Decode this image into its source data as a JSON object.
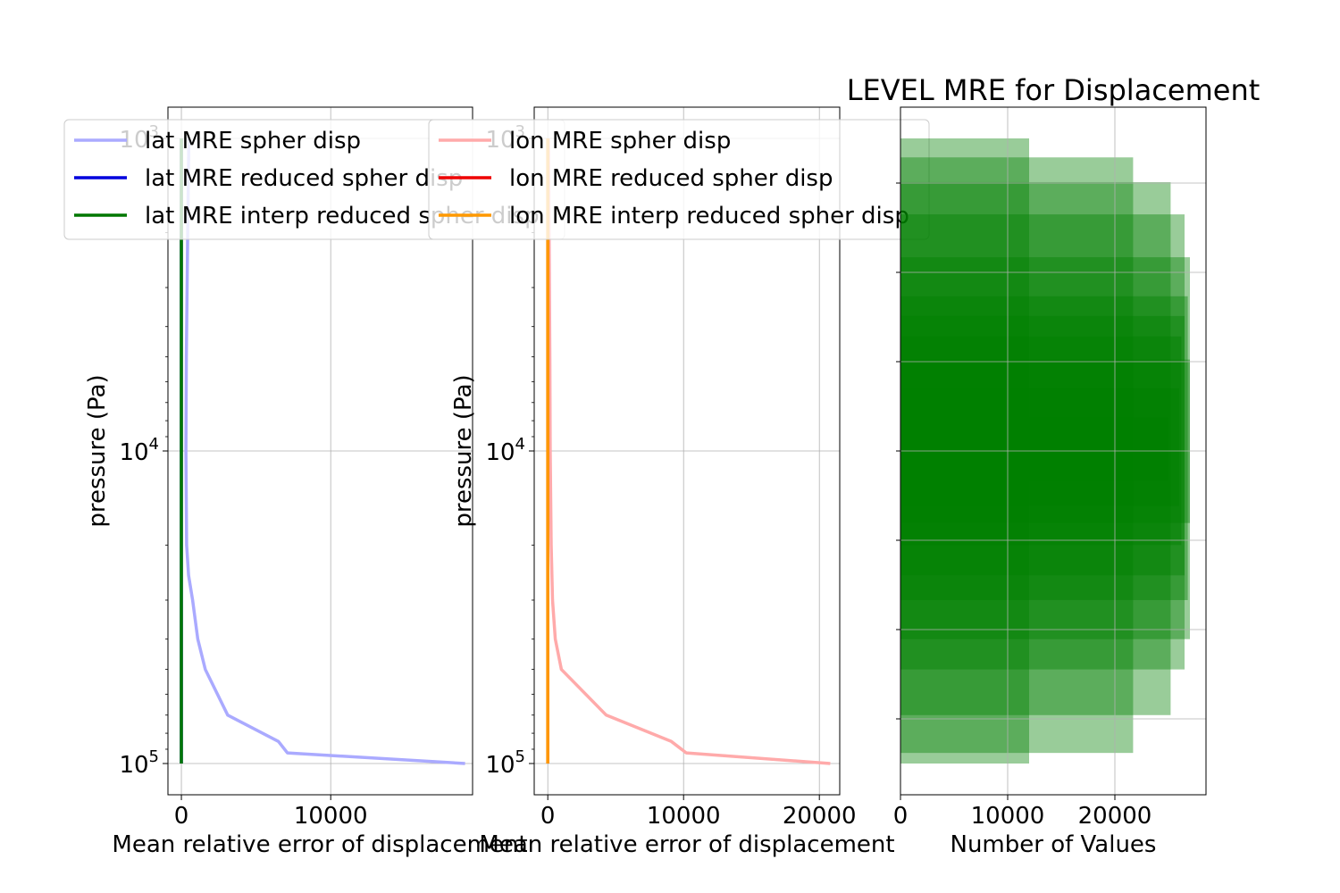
{
  "chart_data": [
    {
      "type": "line",
      "title": "",
      "xlabel": "Mean relative error of displacement",
      "ylabel": "pressure (Pa)",
      "yscale": "log",
      "y_inverted": true,
      "xlim": [
        -900,
        19500
      ],
      "ylim": [
        120000,
        950
      ],
      "xticks": [
        0,
        10000
      ],
      "xtick_labels": [
        "0",
        "10000"
      ],
      "yticks": [
        1000,
        10000,
        100000
      ],
      "ytick_labels": [
        {
          "base": "10",
          "exp": "3"
        },
        {
          "base": "10",
          "exp": "4"
        },
        {
          "base": "10",
          "exp": "5"
        }
      ],
      "grid": true,
      "legend_position": "upper-left",
      "series": [
        {
          "name": "lat MRE spher disp",
          "color": "#aaaaff",
          "x": [
            19000,
            7100,
            6500,
            3100,
            1600,
            1100,
            750,
            480,
            350,
            300,
            330,
            420,
            500
          ],
          "y": [
            100000,
            92500,
            85000,
            70000,
            50000,
            40000,
            30000,
            25000,
            20000,
            10000,
            5000,
            2000,
            1000
          ]
        },
        {
          "name": "lat MRE reduced spher disp",
          "color": "#0000dd",
          "x": [
            0,
            0
          ],
          "y": [
            100000,
            1000
          ]
        },
        {
          "name": "lat MRE interp reduced spher disp",
          "color": "#007700",
          "x": [
            0,
            0
          ],
          "y": [
            100000,
            1000
          ]
        }
      ]
    },
    {
      "type": "line",
      "title": "",
      "xlabel": "Mean relative error of displacement",
      "ylabel": "pressure (Pa)",
      "yscale": "log",
      "y_inverted": true,
      "xlim": [
        -1000,
        21500
      ],
      "ylim": [
        120000,
        950
      ],
      "xticks": [
        0,
        10000,
        20000
      ],
      "xtick_labels": [
        "0",
        "10000",
        "20000"
      ],
      "yticks": [
        1000,
        10000,
        100000
      ],
      "ytick_labels": [
        {
          "base": "10",
          "exp": "3"
        },
        {
          "base": "10",
          "exp": "4"
        },
        {
          "base": "10",
          "exp": "5"
        }
      ],
      "grid": true,
      "legend_position": "upper-left",
      "series": [
        {
          "name": "lon MRE spher disp",
          "color": "#ffaaaa",
          "x": [
            20800,
            10200,
            9100,
            4300,
            1000,
            550,
            350,
            250,
            180,
            150,
            100,
            50
          ],
          "y": [
            100000,
            92500,
            85000,
            70000,
            50000,
            40000,
            30000,
            20000,
            10000,
            5000,
            2000,
            1000
          ]
        },
        {
          "name": "lon MRE reduced spher disp",
          "color": "#ee0000",
          "x": [
            0,
            0
          ],
          "y": [
            100000,
            1000
          ]
        },
        {
          "name": "lon MRE interp reduced spher disp",
          "color": "#ff9900",
          "x": [
            0,
            0
          ],
          "y": [
            100000,
            1000
          ]
        }
      ]
    },
    {
      "type": "bar",
      "orientation": "horizontal",
      "title": "LEVEL MRE for Displacement",
      "xlabel": "Number of Values",
      "ylabel": "",
      "xlim": [
        0,
        28500
      ],
      "xticks": [
        0,
        10000,
        20000
      ],
      "xtick_labels": [
        "0",
        "10000",
        "20000"
      ],
      "grid": true,
      "bar_color": "#008000",
      "bar_alpha": 0.4,
      "levels": [
        {
          "n": 12000,
          "low": 1000,
          "high": 100000
        },
        {
          "n": 21700,
          "low": 1150,
          "high": 92500
        },
        {
          "n": 25200,
          "low": 1380,
          "high": 70000
        },
        {
          "n": 26500,
          "low": 1750,
          "high": 50000
        },
        {
          "n": 27000,
          "low": 2400,
          "high": 40000
        },
        {
          "n": 26800,
          "low": 3200,
          "high": 30000
        },
        {
          "n": 26500,
          "low": 3700,
          "high": 25000
        },
        {
          "n": 26200,
          "low": 4300,
          "high": 20000
        },
        {
          "n": 27000,
          "low": 5100,
          "high": 17000
        },
        {
          "n": 26000,
          "low": 6300,
          "high": 15000
        },
        {
          "n": 25000,
          "low": 7800,
          "high": 12500
        }
      ]
    }
  ]
}
